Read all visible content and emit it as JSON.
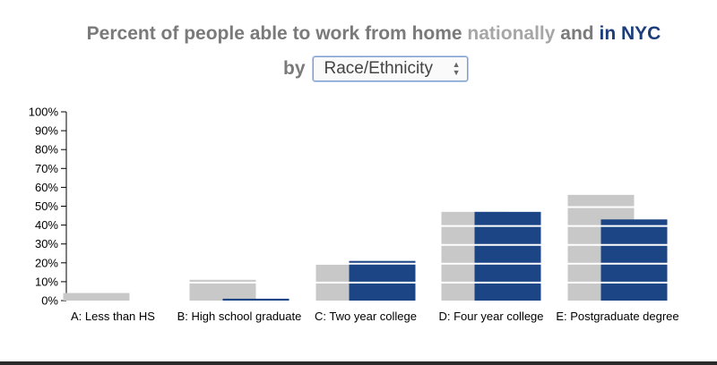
{
  "title": {
    "prefix": "Percent of people able to work from home",
    "nationally": "nationally",
    "and": "and",
    "nyc": "in NYC",
    "by": "by"
  },
  "selector": {
    "value": "Race/Ethnicity"
  },
  "colors": {
    "national": "#c8c8c8",
    "nyc": "#1c4586",
    "text": "#7a7a7a",
    "nyc_title": "#1b3d7a"
  },
  "chart_data": {
    "type": "bar",
    "categories": [
      "A: Less than HS",
      "B: High school graduate",
      "C: Two year college",
      "D: Four year college",
      "E: Postgraduate degree"
    ],
    "series": [
      {
        "values": [
          4,
          11,
          19,
          47,
          56
        ]
      },
      {
        "values": [
          0,
          1,
          21,
          47,
          43
        ]
      }
    ],
    "yticks": [
      "0%",
      "10%",
      "20%",
      "30%",
      "40%",
      "50%",
      "60%",
      "70%",
      "80%",
      "90%",
      "100%"
    ],
    "ylim": [
      0,
      100
    ],
    "grid": false
  }
}
